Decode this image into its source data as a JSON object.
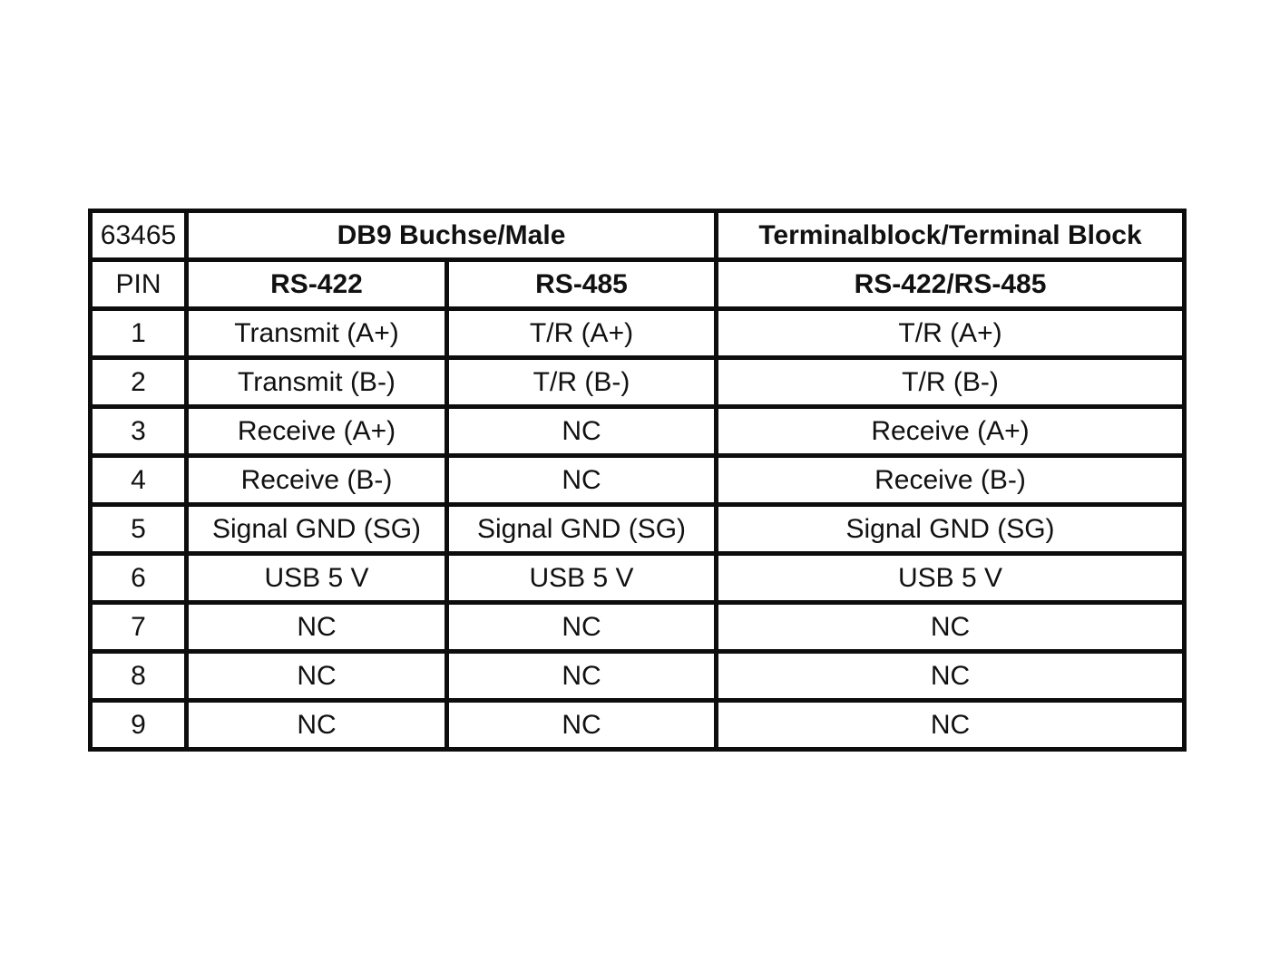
{
  "colors": {
    "background": "#ffffff",
    "border": "#0d0d0d",
    "text": "#111111"
  },
  "table": {
    "part_number": "63465",
    "group_headers": {
      "db9": "DB9 Buchse/Male",
      "terminal": "Terminalblock/Terminal Block"
    },
    "column_headers": {
      "pin": "PIN",
      "rs422": "RS-422",
      "rs485": "RS-485",
      "rs422_rs485": "RS-422/RS-485"
    },
    "rows": [
      {
        "pin": "1",
        "rs422": "Transmit (A+)",
        "rs485": "T/R (A+)",
        "terminal": "T/R (A+)"
      },
      {
        "pin": "2",
        "rs422": "Transmit (B-)",
        "rs485": "T/R (B-)",
        "terminal": "T/R (B-)"
      },
      {
        "pin": "3",
        "rs422": "Receive (A+)",
        "rs485": "NC",
        "terminal": "Receive (A+)"
      },
      {
        "pin": "4",
        "rs422": "Receive (B-)",
        "rs485": "NC",
        "terminal": "Receive (B-)"
      },
      {
        "pin": "5",
        "rs422": "Signal GND (SG)",
        "rs485": "Signal GND (SG)",
        "terminal": "Signal GND (SG)"
      },
      {
        "pin": "6",
        "rs422": "USB 5 V",
        "rs485": "USB 5 V",
        "terminal": "USB 5 V"
      },
      {
        "pin": "7",
        "rs422": "NC",
        "rs485": "NC",
        "terminal": "NC"
      },
      {
        "pin": "8",
        "rs422": "NC",
        "rs485": "NC",
        "terminal": "NC"
      },
      {
        "pin": "9",
        "rs422": "NC",
        "rs485": "NC",
        "terminal": "NC"
      }
    ]
  }
}
